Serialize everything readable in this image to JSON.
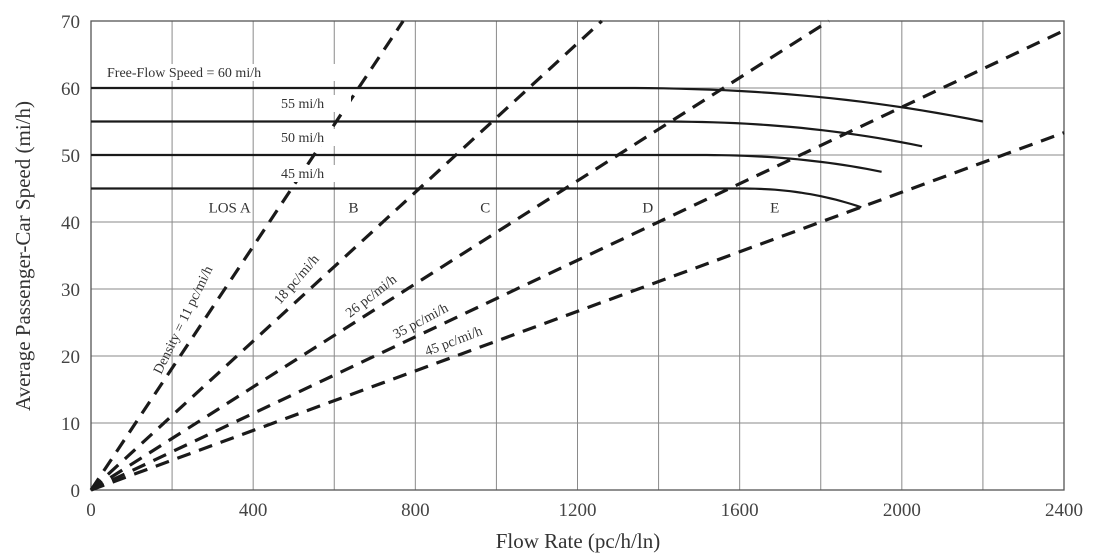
{
  "chart_data": {
    "type": "line",
    "title": "",
    "xlabel": "Flow Rate (pc/h/ln)",
    "ylabel": "Average Passenger-Car Speed (mi/h)",
    "xlim": [
      0,
      2400
    ],
    "ylim": [
      0,
      70
    ],
    "x_ticks": [
      0,
      400,
      800,
      1200,
      1600,
      2000,
      2400
    ],
    "y_ticks": [
      0,
      10,
      20,
      30,
      40,
      50,
      60,
      70
    ],
    "grid": true,
    "speed_flow_curves": [
      {
        "label": "Free-Flow Speed = 60 mi/h",
        "free_flow_speed": 60,
        "breakpoint_flow": 1300,
        "capacity_flow": 2200,
        "capacity_speed": 55
      },
      {
        "label": "55 mi/h",
        "free_flow_speed": 55,
        "breakpoint_flow": 1400,
        "capacity_flow": 2050,
        "capacity_speed": 51.3
      },
      {
        "label": "50 mi/h",
        "free_flow_speed": 50,
        "breakpoint_flow": 1500,
        "capacity_flow": 1950,
        "capacity_speed": 47.5
      },
      {
        "label": "45 mi/h",
        "free_flow_speed": 45,
        "breakpoint_flow": 1600,
        "capacity_flow": 1900,
        "capacity_speed": 42.2
      }
    ],
    "density_lines": [
      {
        "label": "Density = 11 pc/mi/h",
        "density": 11
      },
      {
        "label": "18 pc/mi/h",
        "density": 18
      },
      {
        "label": "26 pc/mi/h",
        "density": 26
      },
      {
        "label": "35 pc/mi/h",
        "density": 35
      },
      {
        "label": "45 pc/mi/h",
        "density": 45
      }
    ],
    "los_labels": [
      {
        "label": "LOS A",
        "x": 290,
        "y": 41.4
      },
      {
        "label": "B",
        "x": 635,
        "y": 41.4
      },
      {
        "label": "C",
        "x": 960,
        "y": 41.4
      },
      {
        "label": "D",
        "x": 1360,
        "y": 41.4
      },
      {
        "label": "E",
        "x": 1675,
        "y": 41.4
      }
    ]
  }
}
